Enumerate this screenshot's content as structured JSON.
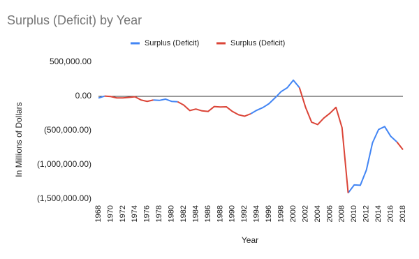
{
  "chart_data": {
    "type": "line",
    "title": "Surplus (Deficit) by Year",
    "x_label": "Year",
    "y_label": "In Millions of Dollars",
    "x": [
      1968,
      1969,
      1970,
      1971,
      1972,
      1973,
      1974,
      1975,
      1976,
      1977,
      1978,
      1979,
      1980,
      1981,
      1982,
      1983,
      1984,
      1985,
      1986,
      1987,
      1988,
      1989,
      1990,
      1991,
      1992,
      1993,
      1994,
      1995,
      1996,
      1997,
      1998,
      1999,
      2000,
      2001,
      2002,
      2003,
      2004,
      2005,
      2006,
      2007,
      2008,
      2009,
      2010,
      2011,
      2012,
      2013,
      2014,
      2015,
      2016,
      2017,
      2018
    ],
    "series": [
      {
        "name": "Surplus (Deficit)",
        "color": "#4285f4",
        "values": [
          -25161,
          3242,
          null,
          null,
          null,
          null,
          null,
          null,
          null,
          -53659,
          -59185,
          -40726,
          -73830,
          -78968,
          null,
          null,
          null,
          null,
          null,
          null,
          null,
          null,
          null,
          null,
          null,
          -255051,
          -203186,
          -163952,
          -107431,
          -21884,
          69270,
          125610,
          236241,
          128236,
          null,
          null,
          null,
          null,
          null,
          null,
          null,
          -1412688,
          -1294373,
          -1299599,
          -1076573,
          -679775,
          -484600,
          -441960,
          -584651,
          -665446,
          null
        ]
      },
      {
        "name": "Surplus (Deficit)",
        "color": "#db4437",
        "values": [
          null,
          3242,
          -2842,
          -23033,
          -23373,
          -14908,
          -6135,
          -53242,
          -73732,
          -53659,
          null,
          null,
          null,
          -78968,
          -127977,
          -207802,
          -185367,
          -212308,
          -221227,
          -149730,
          -155178,
          -152639,
          -221036,
          -269238,
          -290321,
          -255051,
          null,
          null,
          null,
          null,
          null,
          null,
          null,
          128236,
          -157758,
          -377585,
          -412727,
          -318346,
          -248181,
          -160701,
          -458553,
          -1412688,
          null,
          null,
          null,
          null,
          null,
          null,
          null,
          -665446,
          -779137
        ]
      }
    ],
    "xlim": [
      1968,
      2018
    ],
    "xticks": [
      1968,
      1970,
      1972,
      1974,
      1976,
      1978,
      1980,
      1982,
      1984,
      1986,
      1988,
      1990,
      1992,
      1994,
      1996,
      1998,
      2000,
      2002,
      2004,
      2006,
      2008,
      2010,
      2012,
      2014,
      2016,
      2018
    ],
    "ylim": [
      -1500000,
      500000
    ],
    "yticks": [
      {
        "value": 500000,
        "label": "500,000.00"
      },
      {
        "value": 0,
        "label": "0.00"
      },
      {
        "value": -500000,
        "label": "(500,000.00)"
      },
      {
        "value": -1000000,
        "label": "(1,000,000.00)"
      },
      {
        "value": -1500000,
        "label": "(1,500,000.00)"
      }
    ],
    "grid": false
  }
}
